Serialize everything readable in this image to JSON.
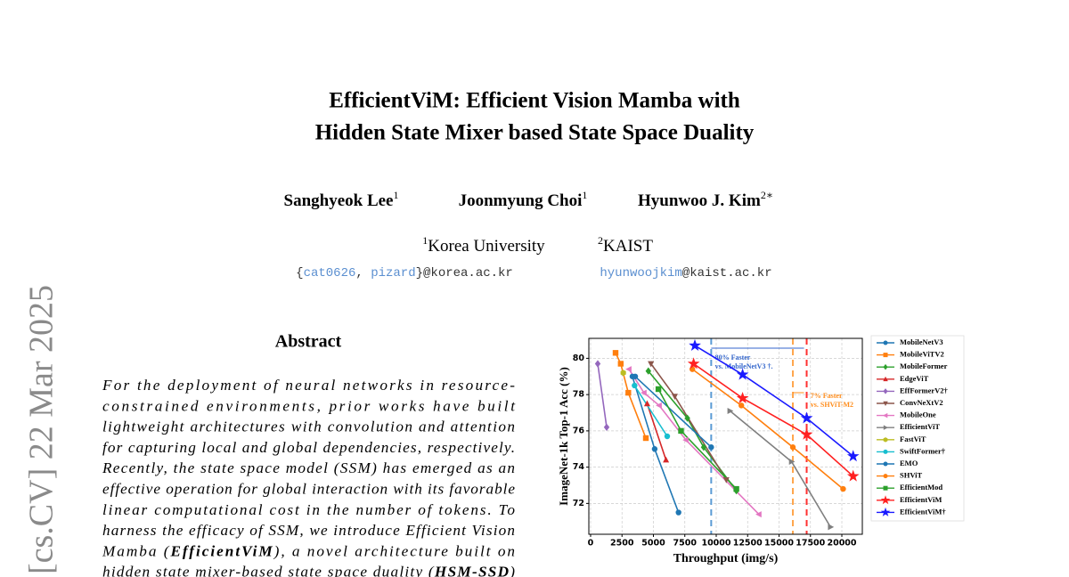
{
  "header": {
    "title_lines": [
      "EfficientViM: Efficient Vision Mamba with",
      "Hidden State Mixer based State Space Duality"
    ],
    "authors": [
      {
        "name": "Sanghyeok Lee",
        "mark": "1"
      },
      {
        "name": "Joonmyung Choi",
        "mark": "1"
      },
      {
        "name": "Hyunwoo J. Kim",
        "mark": "2∗"
      }
    ],
    "affiliations": [
      {
        "mark": "1",
        "name": "Korea University"
      },
      {
        "mark": "2",
        "name": "KAIST"
      }
    ],
    "emails": [
      [
        {
          "text": "{"
        },
        {
          "text": "cat0626",
          "link": true
        },
        {
          "text": ", "
        },
        {
          "text": "pizard",
          "link": true
        },
        {
          "text": "}@korea.ac.kr"
        }
      ],
      [
        {
          "text": "hyunwoojkim",
          "link": true
        },
        {
          "text": "@kaist.ac.kr"
        }
      ]
    ]
  },
  "arxiv_stamp": "[cs.CV]  22 Mar 2025",
  "abstract": {
    "heading": "Abstract",
    "lines": [
      [
        {
          "text": "For the deployment of neural networks in resource-"
        }
      ],
      [
        {
          "text": "constrained environments, prior works have built"
        }
      ],
      [
        {
          "text": "lightweight architectures with convolution and attention"
        }
      ],
      [
        {
          "text": "for capturing local and global dependencies, respectively."
        }
      ],
      [
        {
          "text": "Recently, the state space model (SSM) has emerged as an"
        }
      ],
      [
        {
          "text": "effective operation for global interaction with its favorable"
        }
      ],
      [
        {
          "text": "linear computational cost in the number of tokens.  To"
        }
      ],
      [
        {
          "text": "harness the efficacy of SSM, we introduce Efficient Vision"
        }
      ],
      [
        {
          "text": "Mamba ("
        },
        {
          "text": "EfficientViM",
          "bold": true
        },
        {
          "text": "), a novel architecture built on"
        }
      ],
      [
        {
          "text": "hidden state mixer-based state space duality ("
        },
        {
          "text": "HSM-SSD",
          "bold": true
        },
        {
          "text": ")"
        }
      ]
    ]
  },
  "chart_data": {
    "type": "line",
    "x_label": "Throughput (img/s)",
    "y_label": "ImageNet-1k Top-1 Acc (%)",
    "xlim": [
      -140,
      21630
    ],
    "ylim": [
      70.3,
      81.1
    ],
    "xticks": [
      0,
      2500,
      5000,
      7500,
      10000,
      12500,
      15000,
      17500,
      20000
    ],
    "yticks": [
      72,
      74,
      76,
      78,
      80
    ],
    "grid": true,
    "legend": "right",
    "reference_lines": [
      {
        "x": 9600,
        "color": "#5b9bd5"
      },
      {
        "x": 16100,
        "color": "#ffa64d"
      },
      {
        "x": 17200,
        "color": "#ff3030"
      }
    ],
    "annotations": [
      {
        "lines": [
          "80% Faster",
          "vs. MobileNetV3 †."
        ],
        "x": 9900,
        "y": 80.0,
        "color": "#3366cc"
      },
      {
        "lines": [
          "7% Faster",
          "vs. SHViT-M2"
        ],
        "x": 17500,
        "y": 77.9,
        "color": "#ff8c1a"
      }
    ],
    "series": [
      {
        "name": "MobileNetV3",
        "color": "#1f77b4",
        "marker": "circle",
        "x": [
          3330,
          5100,
          7000
        ],
        "values": [
          79.0,
          75.0,
          71.5
        ]
      },
      {
        "name": "MobileViTV2",
        "color": "#ff7f0e",
        "marker": "square",
        "x": [
          1990,
          2400,
          3000,
          4400
        ],
        "values": [
          80.3,
          79.7,
          78.1,
          75.6
        ]
      },
      {
        "name": "MobileFormer",
        "color": "#2ca02c",
        "marker": "diamond",
        "x": [
          4600,
          7700,
          9000,
          11600
        ],
        "values": [
          79.3,
          76.7,
          75.1,
          72.7
        ]
      },
      {
        "name": "EdgeViT",
        "color": "#d62728",
        "marker": "triangle-up",
        "x": [
          4500,
          6000
        ],
        "values": [
          77.5,
          74.4
        ]
      },
      {
        "name": "EffFormerV2†",
        "color": "#9467bd",
        "marker": "diamond",
        "x": [
          570,
          1280
        ],
        "values": [
          79.7,
          76.2
        ]
      },
      {
        "name": "ConvNeXtV2",
        "color": "#8c564b",
        "marker": "triangle-down",
        "x": [
          4800,
          6700,
          10800
        ],
        "values": [
          79.7,
          77.9,
          73.3
        ]
      },
      {
        "name": "MobileOne",
        "color": "#e377c2",
        "marker": "triangle-left",
        "x": [
          3050,
          4250,
          5460,
          7590,
          13400
        ],
        "values": [
          79.4,
          78.1,
          77.4,
          75.5,
          71.4
        ]
      },
      {
        "name": "EfficientViT",
        "color": "#7f7f7f",
        "marker": "triangle-right",
        "x": [
          11100,
          16000,
          19100
        ],
        "values": [
          77.1,
          74.3,
          70.7
        ]
      },
      {
        "name": "FastViT",
        "color": "#bcbd22",
        "marker": "hexagon",
        "x": [
          2600
        ],
        "values": [
          79.2
        ]
      },
      {
        "name": "SwiftFormer†",
        "color": "#17becf",
        "marker": "circle",
        "x": [
          3500,
          6100
        ],
        "values": [
          78.5,
          75.7
        ]
      },
      {
        "name": "EMO",
        "color": "#1f77b4",
        "marker": "circle",
        "x": [
          3550,
          9600
        ],
        "values": [
          79.0,
          75.1
        ]
      },
      {
        "name": "SHViT",
        "color": "#ff7f0e",
        "marker": "circle",
        "x": [
          8100,
          12000,
          16100,
          20100
        ],
        "values": [
          79.4,
          77.4,
          75.1,
          72.8
        ]
      },
      {
        "name": "EfficientMod",
        "color": "#2ca02c",
        "marker": "square",
        "x": [
          5400,
          7200,
          11600
        ],
        "values": [
          78.3,
          76.0,
          72.8
        ]
      },
      {
        "name": "EfficientViM",
        "color": "#ff2020",
        "marker": "star",
        "x": [
          8200,
          12100,
          17200,
          20900
        ],
        "values": [
          79.7,
          77.8,
          75.8,
          73.5
        ]
      },
      {
        "name": "EfficientViM†",
        "color": "#1a1aff",
        "marker": "star",
        "x": [
          8300,
          12100,
          17200,
          20900
        ],
        "values": [
          80.7,
          79.1,
          76.7,
          74.6
        ]
      }
    ]
  }
}
